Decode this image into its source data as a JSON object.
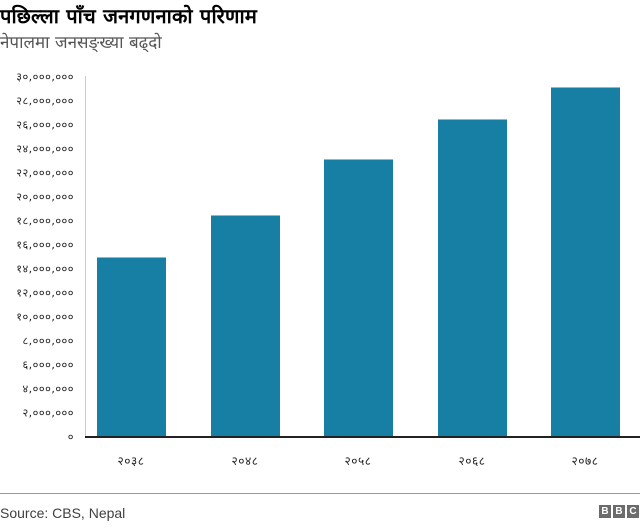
{
  "header": {
    "title": "पछिल्ला पाँच जनगणनाको परिणाम",
    "subtitle": "नेपालमा जनसङ्ख्या बढ्दो"
  },
  "footer": {
    "source": "Source: CBS, Nepal",
    "logo_letters": [
      "B",
      "B",
      "C"
    ]
  },
  "colors": {
    "bar": "#167fa3",
    "axis": "#222222",
    "yaxis_line": "#cccccc",
    "text": "#222222"
  },
  "y_ticks": [
    {
      "label": "३०,०००,०००",
      "value": 30000000
    },
    {
      "label": "२८,०००,०००",
      "value": 28000000
    },
    {
      "label": "२६,०००,०००",
      "value": 26000000
    },
    {
      "label": "२४,०००,०००",
      "value": 24000000
    },
    {
      "label": "२२,०००,०००",
      "value": 22000000
    },
    {
      "label": "२०,०००,०००",
      "value": 20000000
    },
    {
      "label": "१८,०००,०००",
      "value": 18000000
    },
    {
      "label": "१६,०००,०००",
      "value": 16000000
    },
    {
      "label": "१४,०००,०००",
      "value": 14000000
    },
    {
      "label": "१२,०००,०००",
      "value": 12000000
    },
    {
      "label": "१०,०००,०००",
      "value": 10000000
    },
    {
      "label": "८,०००,०००",
      "value": 8000000
    },
    {
      "label": "६,०००,०००",
      "value": 6000000
    },
    {
      "label": "४,०००,०००",
      "value": 4000000
    },
    {
      "label": "२,०००,०००",
      "value": 2000000
    },
    {
      "label": "०",
      "value": 0
    }
  ],
  "chart_data": {
    "type": "bar",
    "title": "पछिल्ला पाँच जनगणनाको परिणाम",
    "subtitle": "नेपालमा जनसङ्ख्या बढ्दो",
    "categories": [
      "२०३८",
      "२०४८",
      "२०५८",
      "२०६८",
      "२०७८"
    ],
    "values": [
      15000000,
      18500000,
      23200000,
      26500000,
      29200000
    ],
    "xlabel": "",
    "ylabel": "",
    "ylim": [
      0,
      30000000
    ],
    "yticks_step": 2000000,
    "grid": false,
    "legend": null,
    "source": "Source: CBS, Nepal"
  }
}
